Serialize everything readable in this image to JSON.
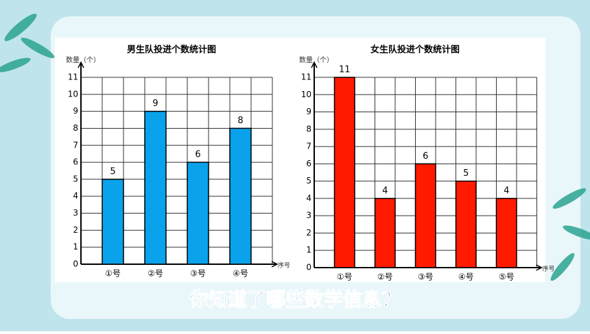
{
  "chart_data": [
    {
      "type": "bar",
      "title": "男生队投进个数统计图",
      "y_label": "数量（个）",
      "x_label": "序号",
      "categories": [
        "①号",
        "②号",
        "③号",
        "④号"
      ],
      "values": [
        5,
        9,
        6,
        8
      ],
      "color": "#0aa2ea",
      "ylim": [
        0,
        11
      ],
      "yticks": [
        0,
        1,
        2,
        3,
        4,
        5,
        6,
        7,
        8,
        9,
        10,
        11
      ],
      "grid": true
    },
    {
      "type": "bar",
      "title": "女生队投进个数统计图",
      "y_label": "数量（个）",
      "x_label": "序号",
      "categories": [
        "①号",
        "②号",
        "③号",
        "④号",
        "⑤号"
      ],
      "values": [
        11,
        4,
        6,
        5,
        4
      ],
      "color": "#ff1a00",
      "ylim": [
        0,
        11
      ],
      "yticks": [
        0,
        1,
        2,
        3,
        4,
        5,
        6,
        7,
        8,
        9,
        10,
        11
      ],
      "grid": true
    }
  ],
  "question": "你知道了哪些数学信息？"
}
